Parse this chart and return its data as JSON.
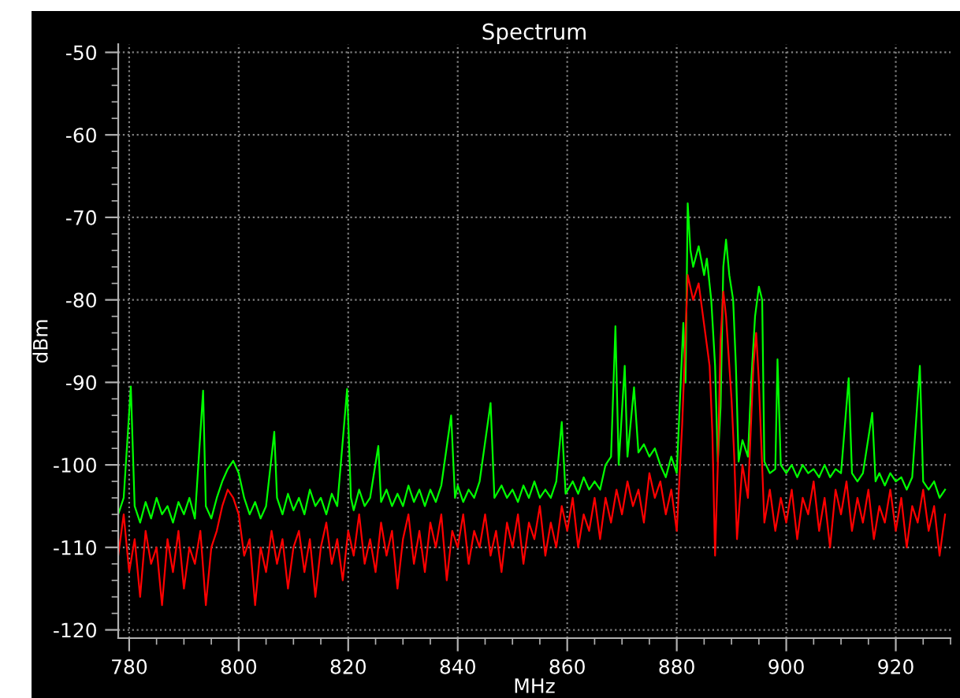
{
  "chart_data": {
    "type": "line",
    "title": "Spectrum",
    "xlabel": "MHz",
    "ylabel": "dBm",
    "xlim": [
      778,
      930
    ],
    "ylim": [
      -121,
      -49
    ],
    "xticks": [
      780,
      800,
      820,
      840,
      860,
      880,
      900,
      920
    ],
    "yticks": [
      -120,
      -110,
      -100,
      -90,
      -80,
      -70,
      -60,
      -50
    ],
    "grid": true,
    "legend": false,
    "marker": "none",
    "line_style": "solid",
    "series": [
      {
        "color": "#00ff00",
        "x": [
          778,
          779,
          780.3,
          781,
          782,
          783,
          784,
          785,
          786,
          787,
          788,
          789,
          790,
          791,
          792,
          793.5,
          794,
          795,
          796,
          797,
          798,
          799,
          800,
          801,
          802,
          803,
          804,
          805,
          806.5,
          807,
          808,
          809,
          810,
          811,
          812,
          813,
          814,
          815,
          816,
          817,
          818,
          819.8,
          820.5,
          821,
          822,
          823,
          824,
          825.5,
          826,
          827,
          828,
          829,
          830,
          831,
          832,
          833,
          834,
          835,
          836,
          837,
          838.8,
          839.5,
          840,
          841,
          842,
          843,
          844,
          846,
          846.7,
          848,
          849,
          850,
          851,
          852,
          853,
          854,
          855,
          856,
          857,
          858,
          859,
          859.7,
          861,
          862,
          863,
          864,
          865,
          866,
          867,
          868,
          868.8,
          869.4,
          870.5,
          871,
          872.2,
          873,
          874,
          875,
          876,
          877,
          878,
          879,
          880,
          881.2,
          881.6,
          882,
          882.5,
          883,
          884,
          885,
          885.5,
          886.3,
          887,
          887.5,
          888,
          888.5,
          889,
          889.6,
          890.3,
          890.8,
          891.3,
          892,
          893,
          893.6,
          894.3,
          895,
          895.6,
          896,
          897,
          898,
          898.4,
          899,
          900,
          901,
          902,
          903,
          904,
          905,
          906,
          907,
          908,
          909,
          910,
          911.4,
          912,
          913,
          914,
          915.7,
          916.3,
          917,
          918,
          919,
          920,
          921,
          922,
          923,
          924.4,
          925,
          926,
          927,
          928,
          929
        ],
        "values": [
          -106,
          -104,
          -90.5,
          -105,
          -107,
          -104.5,
          -106.5,
          -104,
          -106,
          -105,
          -107,
          -104.5,
          -106,
          -104,
          -106.5,
          -91,
          -105,
          -106.5,
          -104,
          -102,
          -100.5,
          -99.5,
          -101,
          -104,
          -106,
          -104.5,
          -106.5,
          -105,
          -96,
          -104,
          -106,
          -103.5,
          -105.5,
          -104,
          -106,
          -103,
          -105,
          -104,
          -106,
          -103.5,
          -105,
          -90.8,
          -104,
          -105.5,
          -103,
          -105,
          -104,
          -97.7,
          -104.5,
          -103,
          -105,
          -103.5,
          -105,
          -102.5,
          -104.5,
          -103,
          -105,
          -103,
          -104.5,
          -102.5,
          -94,
          -104,
          -102.5,
          -104.5,
          -103,
          -104,
          -102,
          -92.5,
          -104,
          -102.5,
          -104,
          -103,
          -104.5,
          -102.5,
          -104,
          -102,
          -104,
          -103,
          -104,
          -102,
          -94.8,
          -103.5,
          -102,
          -103.5,
          -101.5,
          -103,
          -102,
          -103,
          -100,
          -99,
          -83.2,
          -100,
          -88,
          -99,
          -90.6,
          -98.5,
          -97.5,
          -99,
          -98,
          -100,
          -101.5,
          -99,
          -101,
          -82.8,
          -90,
          -68.3,
          -74,
          -76,
          -73.5,
          -77,
          -75,
          -80,
          -88,
          -99.6,
          -93,
          -76,
          -72.7,
          -77,
          -80,
          -88,
          -99.6,
          -97,
          -99,
          -90,
          -82,
          -78.4,
          -80,
          -99.6,
          -101,
          -100.5,
          -87.2,
          -100,
          -101,
          -100,
          -101.5,
          -100,
          -101,
          -100.5,
          -101.5,
          -100,
          -101.5,
          -100.5,
          -101,
          -89.5,
          -101,
          -102,
          -101,
          -93.7,
          -102,
          -101,
          -102.5,
          -101,
          -102,
          -101.5,
          -103,
          -101.5,
          -88,
          -102,
          -103,
          -102,
          -104,
          -103
        ]
      },
      {
        "color": "#ff0000",
        "x": [
          778,
          779,
          780,
          781,
          782,
          783,
          784,
          785,
          786,
          787,
          788,
          789,
          790,
          791,
          792,
          793,
          794,
          795,
          796,
          797,
          798,
          799,
          800,
          801,
          802,
          803,
          804,
          805,
          806,
          807,
          808,
          809,
          810,
          811,
          812,
          813,
          814,
          815,
          816,
          817,
          818,
          819,
          820,
          821,
          822,
          823,
          824,
          825,
          826,
          827,
          828,
          829,
          830,
          831,
          832,
          833,
          834,
          835,
          836,
          837,
          838,
          839,
          840,
          841,
          842,
          843,
          844,
          845,
          846,
          847,
          848,
          849,
          850,
          851,
          852,
          853,
          854,
          855,
          856,
          857,
          858,
          859,
          860,
          861,
          862,
          863,
          864,
          865,
          866,
          867,
          868,
          869,
          870,
          871,
          872,
          873,
          874,
          875,
          876,
          877,
          878,
          879,
          880,
          881,
          882,
          883,
          884,
          885,
          886,
          886.5,
          887,
          887.5,
          888,
          888.5,
          889,
          890,
          890.5,
          891,
          892,
          893,
          893.5,
          894,
          894.5,
          895,
          896,
          897,
          898,
          899,
          900,
          901,
          902,
          903,
          904,
          905,
          906,
          907,
          908,
          909,
          910,
          911,
          912,
          913,
          914,
          915,
          916,
          917,
          918,
          919,
          920,
          921,
          922,
          923,
          924,
          925,
          926,
          927,
          928,
          929
        ],
        "values": [
          -111,
          -106,
          -113,
          -109,
          -116,
          -108,
          -112,
          -110,
          -117,
          -109,
          -113,
          -108,
          -115,
          -110,
          -112,
          -108,
          -117,
          -110,
          -108,
          -105,
          -103,
          -104,
          -106,
          -111,
          -109,
          -117,
          -110,
          -113,
          -108,
          -112,
          -109,
          -115,
          -110,
          -108,
          -113,
          -109,
          -116,
          -110,
          -107,
          -112,
          -109,
          -114,
          -108,
          -111,
          -106,
          -112,
          -109,
          -113,
          -107,
          -111,
          -108,
          -115,
          -109,
          -106,
          -112,
          -108,
          -113,
          -107,
          -110,
          -106,
          -114,
          -108,
          -110,
          -106,
          -112,
          -108,
          -110,
          -106,
          -111,
          -108,
          -113,
          -107,
          -110,
          -106,
          -112,
          -107,
          -109,
          -105,
          -111,
          -107,
          -110,
          -105,
          -108,
          -104,
          -110,
          -106,
          -108,
          -104,
          -109,
          -104,
          -107,
          -103,
          -106,
          -102,
          -105,
          -103,
          -107,
          -101,
          -104,
          -102,
          -106,
          -103,
          -108,
          -95,
          -77,
          -80,
          -78,
          -83,
          -88,
          -96,
          -111,
          -100,
          -85,
          -79,
          -82,
          -92,
          -99,
          -109,
          -100,
          -104,
          -96,
          -88,
          -84,
          -90,
          -107,
          -103,
          -108,
          -104,
          -107,
          -103,
          -109,
          -104,
          -106,
          -102,
          -108,
          -104,
          -110,
          -103,
          -106,
          -102,
          -108,
          -104,
          -107,
          -103,
          -109,
          -105,
          -107,
          -103,
          -108,
          -104,
          -110,
          -105,
          -107,
          -103,
          -108,
          -105,
          -111,
          -106
        ]
      }
    ]
  }
}
